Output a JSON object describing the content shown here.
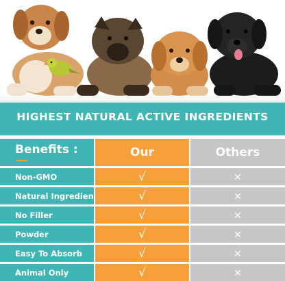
{
  "banner": {
    "title": "HIGHEST NATURAL ACTIVE INGREDIENTS"
  },
  "table": {
    "header": {
      "benefits": "Benefits :",
      "ours": "Our",
      "others": "Others"
    },
    "rows": [
      {
        "label": "Non-GMO",
        "ours": "√",
        "others": "✕"
      },
      {
        "label": "Natural Ingredients",
        "ours": "√",
        "others": "✕"
      },
      {
        "label": "No Filler",
        "ours": "√",
        "others": "✕"
      },
      {
        "label": "Powder",
        "ours": "√",
        "others": "✕"
      },
      {
        "label": "Easy To Absorb",
        "ours": "√",
        "others": "✕"
      },
      {
        "label": "Animal Only",
        "ours": "√",
        "others": "✕"
      }
    ]
  },
  "colors": {
    "teal": "#3fb5b5",
    "orange": "#f7a03a",
    "gray": "#c6c6c6"
  },
  "photo": {
    "subjects": [
      "golden-puppy",
      "yellow-bird",
      "german-shepherd-puppy",
      "golden-retriever-puppy",
      "black-labrador-puppy"
    ]
  }
}
